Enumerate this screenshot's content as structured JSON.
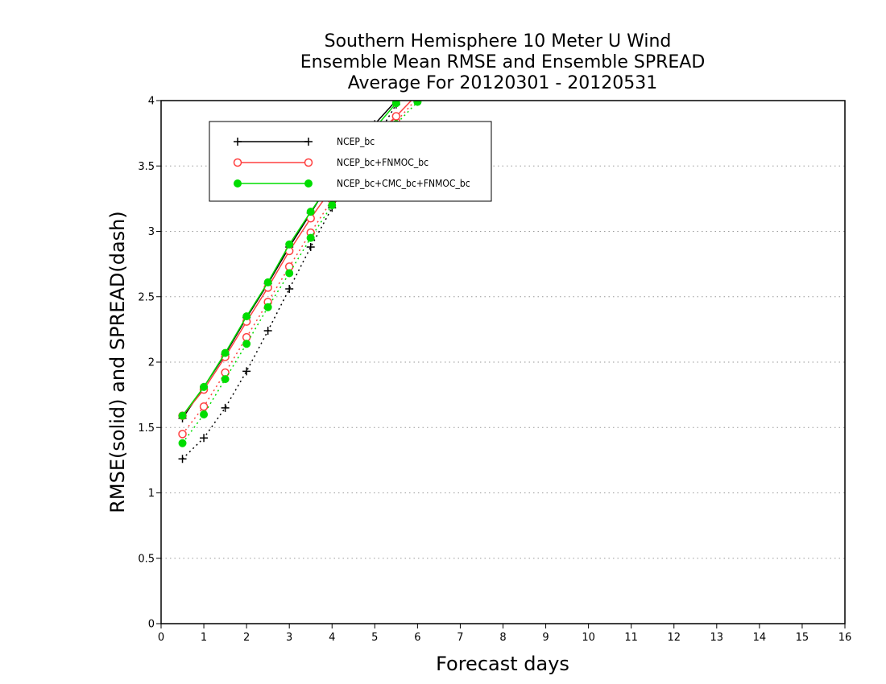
{
  "chart_data": {
    "type": "line",
    "title": [
      "Southern Hemisphere 10 Meter U Wind",
      "Ensemble Mean RMSE and Ensemble SPREAD",
      "Average For 20120301 - 20120531"
    ],
    "xlabel": "Forecast days",
    "ylabel": "RMSE(solid) and SPREAD(dash)",
    "xlim": [
      0,
      16
    ],
    "ylim": [
      0,
      4
    ],
    "xticks": [
      "0",
      "1",
      "2",
      "3",
      "4",
      "5",
      "6",
      "7",
      "8",
      "9",
      "10",
      "11",
      "12",
      "13",
      "14",
      "15",
      "16"
    ],
    "yticks": [
      "0",
      "0.5",
      "1",
      "1.5",
      "2",
      "2.5",
      "3",
      "3.5",
      "4"
    ],
    "grid": "horizontal dotted",
    "legend_position": "top-left",
    "series": [
      {
        "name": "NCEP_bc",
        "color": "#000000",
        "marker": "plus",
        "rmse": {
          "x": [
            0.5,
            1.0,
            1.5,
            2.0,
            2.5,
            3.0,
            3.5,
            4.0,
            4.5,
            5.0,
            5.5,
            6.0
          ],
          "y": [
            1.57,
            1.81,
            2.06,
            2.34,
            2.6,
            2.88,
            3.14,
            3.4,
            3.62,
            3.82,
            4.0,
            4.18
          ]
        },
        "spread": {
          "x": [
            0.5,
            1.0,
            1.5,
            2.0,
            2.5,
            3.0,
            3.5,
            4.0,
            4.5,
            5.0,
            5.5,
            6.0
          ],
          "y": [
            1.26,
            1.42,
            1.65,
            1.93,
            2.24,
            2.56,
            2.88,
            3.18,
            3.46,
            3.7,
            3.97,
            4.15
          ]
        }
      },
      {
        "name": "NCEP_bc+FNMOC_bc",
        "color": "#ff4040",
        "marker": "open-circle",
        "rmse": {
          "x": [
            0.5,
            1.0,
            1.5,
            2.0,
            2.5,
            3.0,
            3.5,
            4.0,
            4.5,
            5.0,
            5.5,
            6.0
          ],
          "y": [
            1.59,
            1.79,
            2.04,
            2.31,
            2.57,
            2.85,
            3.1,
            3.33,
            3.55,
            3.73,
            3.88,
            4.05
          ]
        },
        "spread": {
          "x": [
            0.5,
            1.0,
            1.5,
            2.0,
            2.5,
            3.0,
            3.5,
            4.0,
            4.5,
            5.0,
            5.5,
            6.0
          ],
          "y": [
            1.45,
            1.66,
            1.92,
            2.19,
            2.46,
            2.73,
            2.99,
            3.24,
            3.47,
            3.66,
            3.84,
            4.02
          ]
        }
      },
      {
        "name": "NCEP_bc+CMC_bc+FNMOC_bc",
        "color": "#00dd00",
        "marker": "filled-circle",
        "rmse": {
          "x": [
            0.5,
            1.0,
            1.5,
            2.0,
            2.5,
            3.0,
            3.5,
            4.0,
            4.5,
            5.0,
            5.5,
            6.0
          ],
          "y": [
            1.59,
            1.81,
            2.07,
            2.35,
            2.61,
            2.9,
            3.15,
            3.39,
            3.6,
            3.79,
            3.98,
            4.15
          ]
        },
        "spread": {
          "x": [
            0.5,
            1.0,
            1.5,
            2.0,
            2.5,
            3.0,
            3.5,
            4.0,
            4.5,
            5.0,
            5.5,
            6.0
          ],
          "y": [
            1.38,
            1.6,
            1.87,
            2.14,
            2.42,
            2.68,
            2.95,
            3.2,
            3.42,
            3.62,
            3.82,
            3.99
          ]
        }
      }
    ]
  }
}
